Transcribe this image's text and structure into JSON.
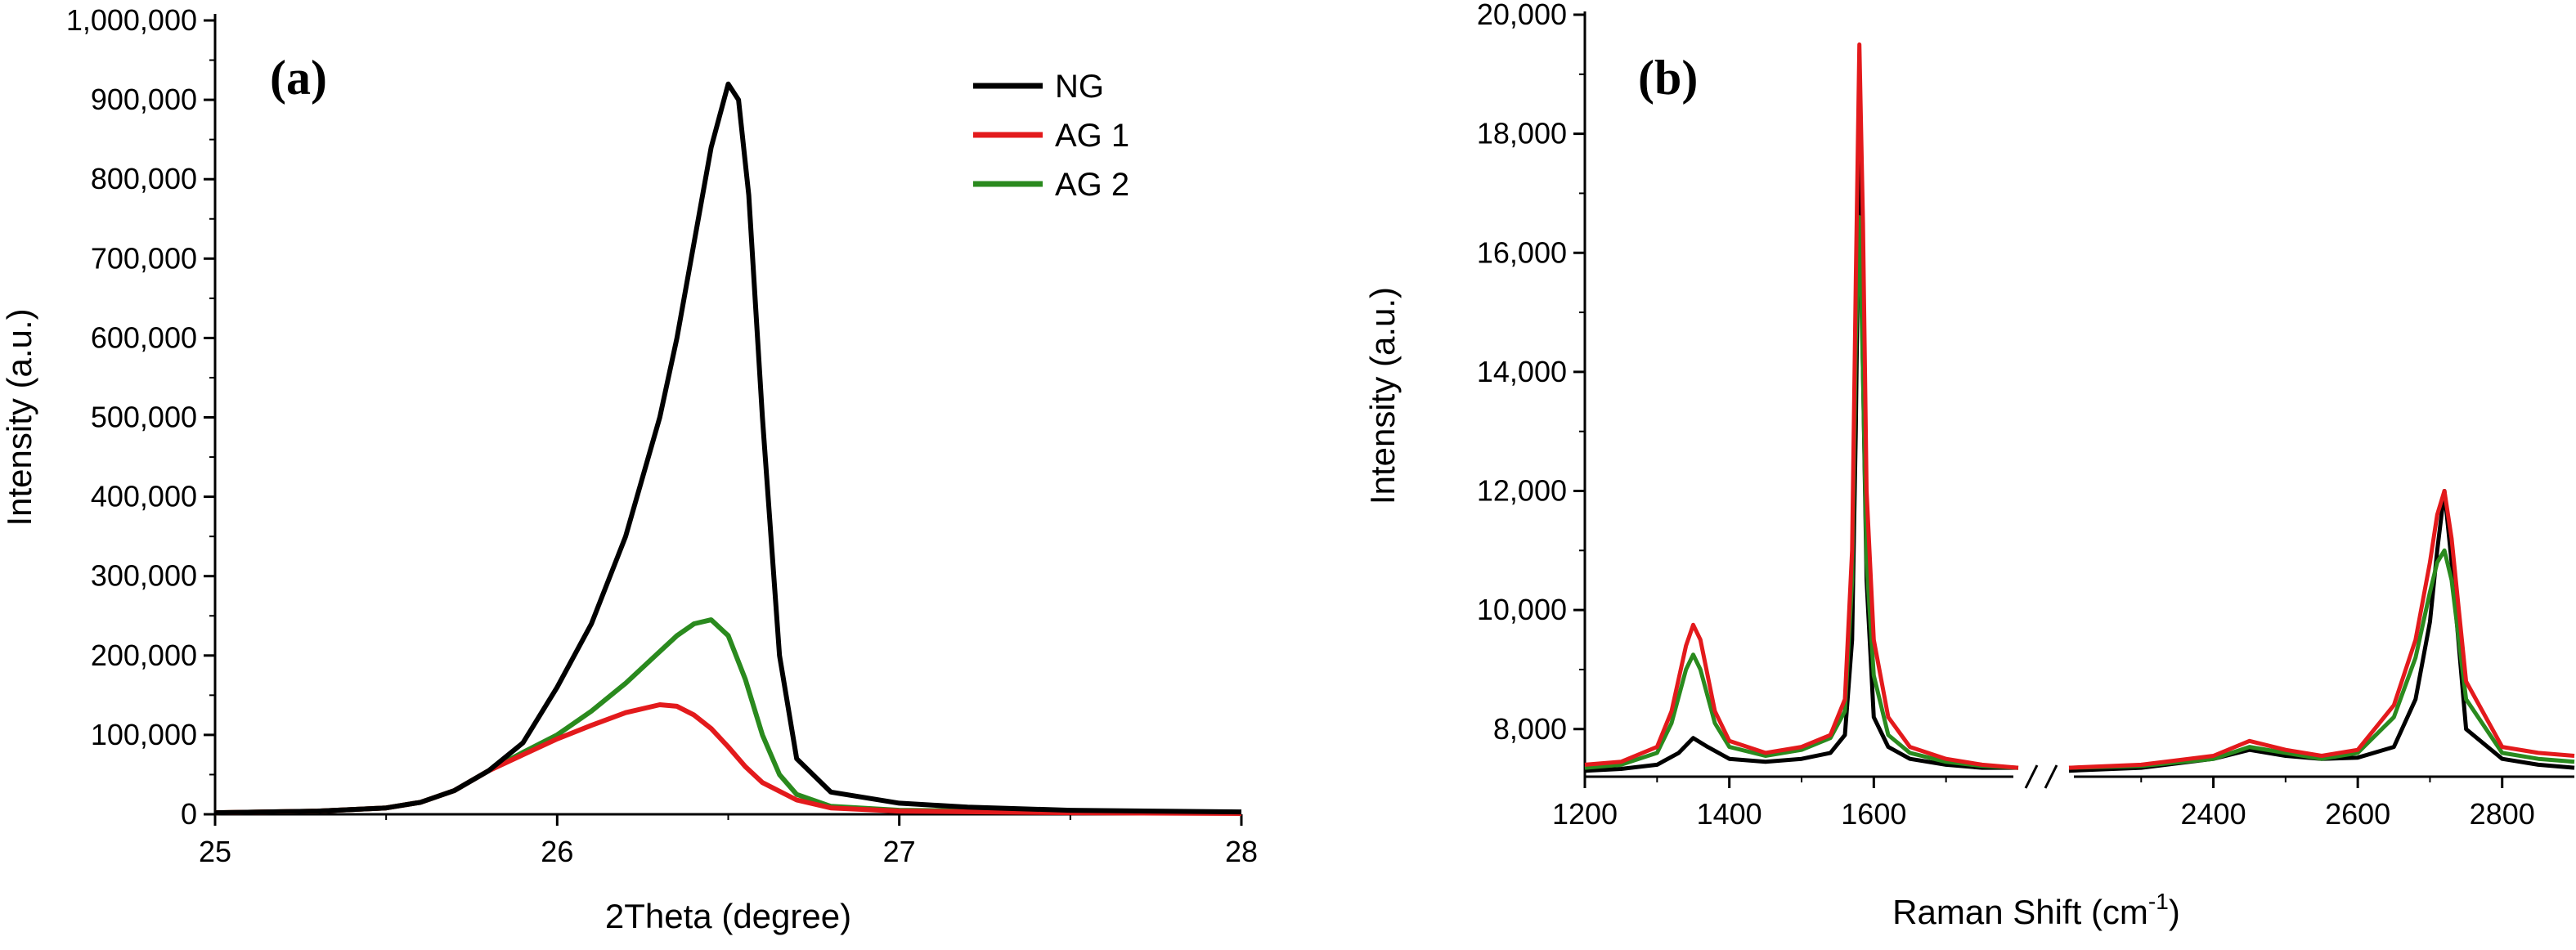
{
  "chart_data": [
    {
      "panel_label": "(a)",
      "type": "line",
      "xlabel": "2Theta (degree)",
      "ylabel": "Intensity (a.u.)",
      "xlim": [
        25,
        28
      ],
      "ylim": [
        0,
        1000000
      ],
      "xticks": [
        "25",
        "26",
        "27",
        "28"
      ],
      "yticks": [
        "0",
        "100,000",
        "200,000",
        "300,000",
        "400,000",
        "500,000",
        "600,000",
        "700,000",
        "800,000",
        "900,000",
        "1,000,000"
      ],
      "legend": "top-right",
      "series": [
        {
          "name": "NG",
          "color": "#000000",
          "x": [
            25.0,
            25.3,
            25.5,
            25.6,
            25.7,
            25.8,
            25.9,
            26.0,
            26.1,
            26.2,
            26.3,
            26.35,
            26.4,
            26.45,
            26.5,
            26.53,
            26.56,
            26.6,
            26.65,
            26.7,
            26.8,
            27.0,
            27.2,
            27.5,
            28.0
          ],
          "y": [
            2000,
            4000,
            8000,
            15000,
            30000,
            55000,
            90000,
            160000,
            240000,
            350000,
            500000,
            600000,
            720000,
            840000,
            920000,
            900000,
            780000,
            500000,
            200000,
            70000,
            28000,
            14000,
            9000,
            5000,
            3000
          ]
        },
        {
          "name": "AG 1",
          "color": "#e31a1c",
          "x": [
            25.0,
            25.3,
            25.5,
            25.6,
            25.7,
            25.8,
            25.9,
            26.0,
            26.1,
            26.2,
            26.3,
            26.35,
            26.4,
            26.45,
            26.5,
            26.55,
            26.6,
            26.7,
            26.8,
            27.0,
            27.5,
            28.0
          ],
          "y": [
            2000,
            4000,
            8000,
            15000,
            30000,
            55000,
            75000,
            95000,
            112000,
            128000,
            138000,
            136000,
            125000,
            108000,
            85000,
            60000,
            40000,
            18000,
            8000,
            4000,
            2000,
            1000
          ]
        },
        {
          "name": "AG 2",
          "color": "#2a8a1e",
          "x": [
            25.0,
            25.3,
            25.5,
            25.6,
            25.7,
            25.8,
            25.9,
            26.0,
            26.1,
            26.2,
            26.3,
            26.35,
            26.4,
            26.45,
            26.5,
            26.55,
            26.6,
            26.65,
            26.7,
            26.8,
            27.0,
            27.5,
            28.0
          ],
          "y": [
            2000,
            4000,
            8000,
            15000,
            30000,
            55000,
            78000,
            100000,
            130000,
            165000,
            205000,
            225000,
            240000,
            245000,
            225000,
            170000,
            100000,
            50000,
            25000,
            10000,
            5000,
            3000,
            2000
          ]
        }
      ]
    },
    {
      "panel_label": "(b)",
      "type": "line",
      "xlabel": "Raman Shift (cm",
      "xlabel_sup": "-1",
      "xlabel_end": ")",
      "ylabel": "Intensity (a.u.)",
      "xlim": [
        1200,
        2900
      ],
      "axis_break": [
        1800,
        2200
      ],
      "ylim": [
        7200,
        20000
      ],
      "xticks": [
        "1200",
        "1400",
        "1600",
        "2400",
        "2600",
        "2800"
      ],
      "yticks": [
        "8,000",
        "10,000",
        "12,000",
        "14,000",
        "16,000",
        "18,000",
        "20,000"
      ],
      "series": [
        {
          "name": "NG",
          "color": "#000000",
          "x": [
            1200,
            1250,
            1300,
            1330,
            1350,
            1370,
            1400,
            1450,
            1500,
            1540,
            1560,
            1570,
            1575,
            1580,
            1585,
            1590,
            1600,
            1620,
            1650,
            1700,
            1750,
            1800,
            2200,
            2300,
            2400,
            2450,
            2500,
            2550,
            2600,
            2650,
            2680,
            2700,
            2710,
            2720,
            2730,
            2750,
            2800,
            2850,
            2900
          ],
          "y": [
            7300,
            7330,
            7400,
            7600,
            7850,
            7700,
            7500,
            7450,
            7500,
            7600,
            7900,
            9500,
            13000,
            17800,
            14000,
            10500,
            8200,
            7700,
            7500,
            7400,
            7350,
            7350,
            7300,
            7350,
            7500,
            7650,
            7550,
            7500,
            7520,
            7700,
            8500,
            9800,
            11000,
            12000,
            10800,
            8000,
            7500,
            7400,
            7350
          ]
        },
        {
          "name": "AG 1",
          "color": "#e31a1c",
          "x": [
            1200,
            1250,
            1300,
            1320,
            1340,
            1350,
            1360,
            1380,
            1400,
            1450,
            1500,
            1540,
            1560,
            1570,
            1575,
            1580,
            1585,
            1590,
            1600,
            1620,
            1650,
            1700,
            1750,
            1800,
            2200,
            2300,
            2400,
            2450,
            2500,
            2550,
            2600,
            2650,
            2680,
            2700,
            2710,
            2720,
            2730,
            2750,
            2800,
            2850,
            2900
          ],
          "y": [
            7400,
            7450,
            7700,
            8300,
            9400,
            9750,
            9500,
            8300,
            7800,
            7600,
            7700,
            7900,
            8500,
            11000,
            15500,
            19500,
            16500,
            12000,
            9500,
            8200,
            7700,
            7500,
            7400,
            7350,
            7350,
            7400,
            7550,
            7800,
            7650,
            7550,
            7650,
            8400,
            9500,
            10800,
            11600,
            12000,
            11200,
            8800,
            7700,
            7600,
            7550
          ]
        },
        {
          "name": "AG 2",
          "color": "#2a8a1e",
          "x": [
            1200,
            1250,
            1300,
            1320,
            1340,
            1350,
            1360,
            1380,
            1400,
            1450,
            1500,
            1540,
            1560,
            1570,
            1575,
            1580,
            1585,
            1590,
            1600,
            1620,
            1650,
            1700,
            1750,
            1800,
            2200,
            2300,
            2400,
            2450,
            2500,
            2550,
            2600,
            2650,
            2680,
            2700,
            2710,
            2720,
            2730,
            2750,
            2800,
            2850,
            2900
          ],
          "y": [
            7350,
            7400,
            7600,
            8100,
            9000,
            9250,
            9000,
            8100,
            7700,
            7550,
            7650,
            7850,
            8300,
            10500,
            14500,
            16600,
            14000,
            10800,
            8900,
            7900,
            7600,
            7450,
            7380,
            7350,
            7350,
            7380,
            7500,
            7700,
            7600,
            7500,
            7600,
            8200,
            9200,
            10300,
            10800,
            11000,
            10500,
            8500,
            7600,
            7500,
            7450
          ]
        }
      ]
    }
  ]
}
